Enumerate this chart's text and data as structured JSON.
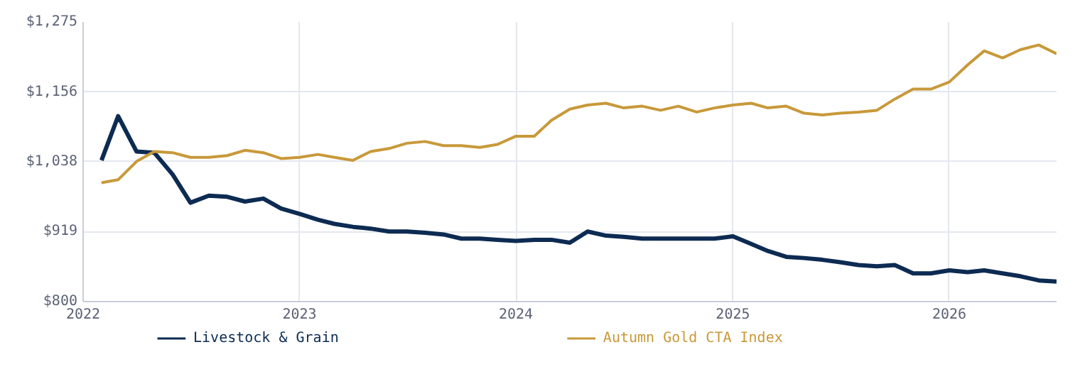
{
  "chart_data": {
    "type": "line",
    "x": [
      "2022-02",
      "2022-03",
      "2022-04",
      "2022-05",
      "2022-06",
      "2022-07",
      "2022-08",
      "2022-09",
      "2022-10",
      "2022-11",
      "2022-12",
      "2023-01",
      "2023-02",
      "2023-03",
      "2023-04",
      "2023-05",
      "2023-06",
      "2023-07",
      "2023-08",
      "2023-09",
      "2023-10",
      "2023-11",
      "2023-12",
      "2024-01",
      "2024-02",
      "2024-03",
      "2024-04",
      "2024-05",
      "2024-06",
      "2024-07",
      "2024-08",
      "2024-09",
      "2024-10",
      "2024-11",
      "2024-12",
      "2025-01",
      "2025-02",
      "2025-03",
      "2025-04",
      "2025-05",
      "2025-06",
      "2025-07",
      "2025-08",
      "2025-09",
      "2025-10",
      "2025-11",
      "2025-12",
      "2026-01",
      "2026-02",
      "2026-03",
      "2026-04",
      "2026-05",
      "2026-06",
      "2026-07"
    ],
    "series": [
      {
        "name": "Livestock & Grain",
        "color": "#0d2b52",
        "values": [
          1040,
          1115,
          1055,
          1053,
          1016,
          968,
          980,
          978,
          970,
          975,
          958,
          949,
          939,
          932,
          927,
          924,
          919,
          919,
          917,
          914,
          907,
          907,
          905,
          903,
          905,
          905,
          900,
          919,
          912,
          910,
          907,
          907,
          907,
          907,
          907,
          911,
          898,
          886,
          876,
          874,
          871,
          867,
          862,
          860,
          862,
          848,
          848,
          853,
          850,
          853,
          848,
          843,
          836,
          834
        ]
      },
      {
        "name": "Autumn Gold CTA Index",
        "color": "#c8993a",
        "values": [
          1002,
          1007,
          1038,
          1055,
          1053,
          1045,
          1045,
          1048,
          1057,
          1053,
          1043,
          1045,
          1050,
          1045,
          1040,
          1055,
          1060,
          1069,
          1072,
          1065,
          1065,
          1062,
          1067,
          1081,
          1081,
          1108,
          1127,
          1134,
          1137,
          1129,
          1132,
          1125,
          1132,
          1122,
          1129,
          1134,
          1137,
          1129,
          1132,
          1120,
          1117,
          1120,
          1122,
          1125,
          1144,
          1161,
          1161,
          1173,
          1202,
          1226,
          1214,
          1228,
          1236,
          1221
        ]
      }
    ],
    "xlim": [
      "2022-01",
      "2026-07"
    ],
    "xticks": [
      {
        "value": "2022",
        "label": "2022"
      },
      {
        "value": "2023",
        "label": "2023"
      },
      {
        "value": "2024",
        "label": "2024"
      },
      {
        "value": "2025",
        "label": "2025"
      },
      {
        "value": "2026",
        "label": "2026"
      }
    ],
    "ylim": [
      800,
      1275
    ],
    "yticks": [
      {
        "value": 800,
        "label": "$800"
      },
      {
        "value": 919,
        "label": "$919"
      },
      {
        "value": 1038,
        "label": "$1,038"
      },
      {
        "value": 1156,
        "label": "$1,156"
      },
      {
        "value": 1275,
        "label": "$1,275"
      }
    ],
    "grid": true,
    "legend": "bottom",
    "marker": "none",
    "line_style": "solid"
  }
}
